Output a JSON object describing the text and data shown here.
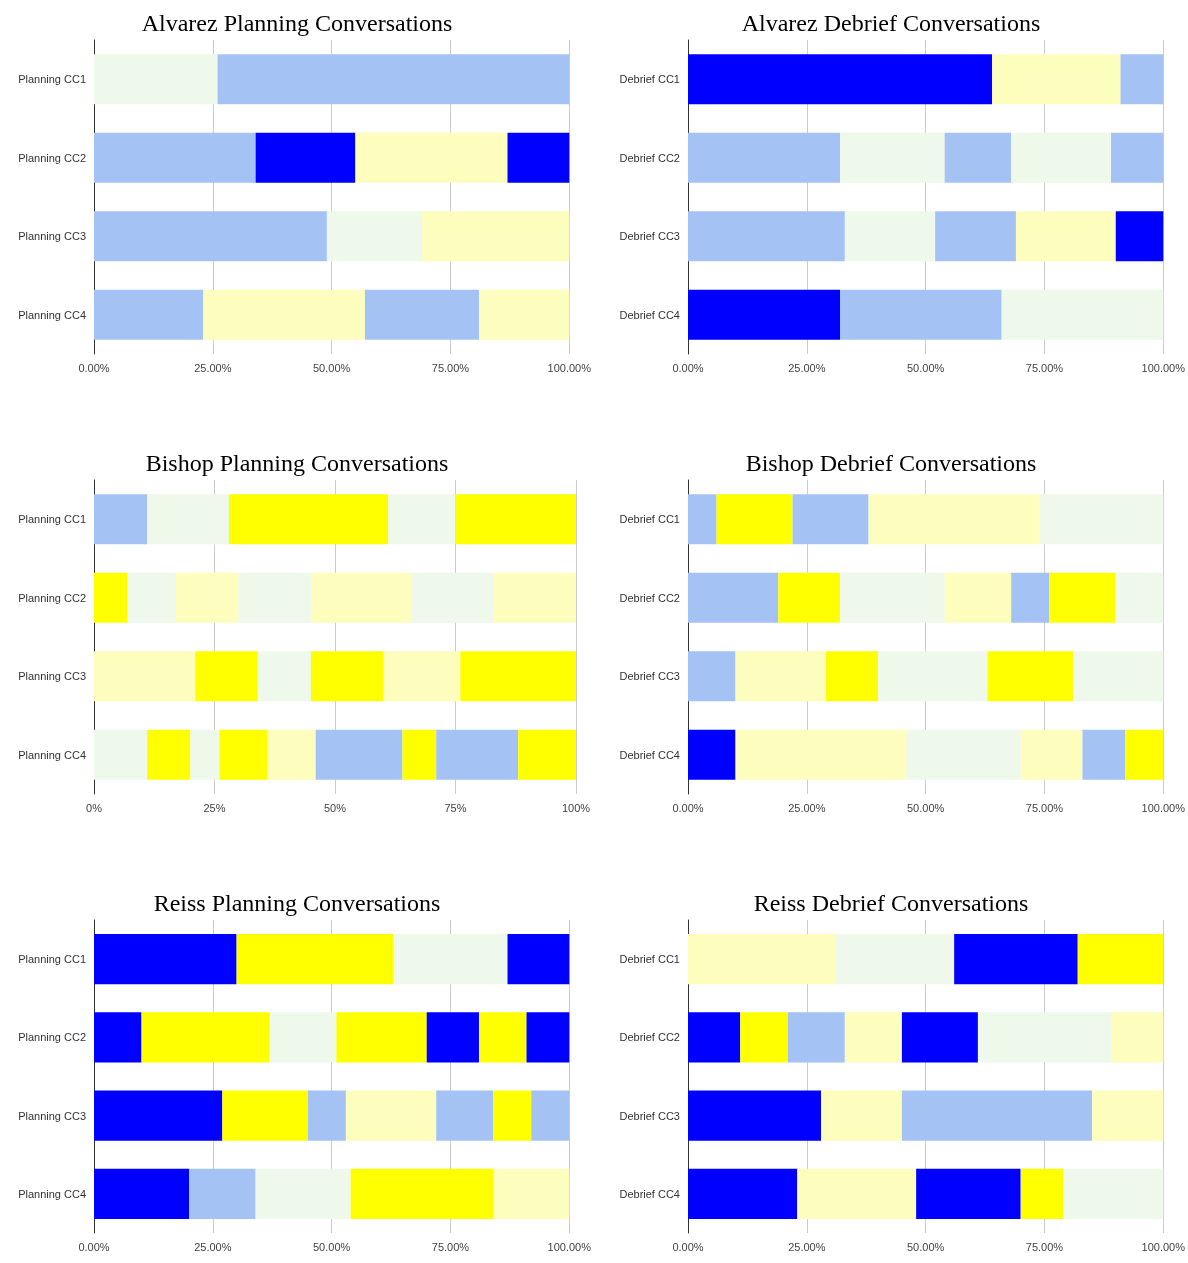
{
  "chart_data": [
    {
      "type": "bar",
      "orientation": "horizontal",
      "stacked": true,
      "grid": "x",
      "legend": false,
      "title": "Alvarez Planning Conversations",
      "categories": [
        "Planning CC1",
        "Planning CC2",
        "Planning CC3",
        "Planning CC4"
      ],
      "xlim": [
        0,
        100
      ],
      "xticks": [
        {
          "value": 0,
          "label": "0.00%"
        },
        {
          "value": 25,
          "label": "25.00%"
        },
        {
          "value": 50,
          "label": "50.00%"
        },
        {
          "value": 75,
          "label": "75.00%"
        },
        {
          "value": 100,
          "label": "100.00%"
        }
      ],
      "series": [
        {
          "values": [
            26,
            34,
            49,
            23
          ],
          "colors": [
            "#eef8eb",
            "#a4c2f4",
            "#a4c2f4",
            "#a4c2f4"
          ]
        },
        {
          "values": [
            74,
            21,
            20,
            34
          ],
          "colors": [
            "#a4c2f4",
            "#0000ff",
            "#eef8eb",
            "#fdfebe"
          ]
        },
        {
          "values": [
            null,
            32,
            31,
            24
          ],
          "colors": [
            null,
            "#fdfebe",
            "#fdfebe",
            "#a4c2f4"
          ]
        },
        {
          "values": [
            null,
            13,
            null,
            19
          ],
          "colors": [
            null,
            "#0000ff",
            null,
            "#fdfebe"
          ]
        }
      ]
    },
    {
      "type": "bar",
      "orientation": "horizontal",
      "stacked": true,
      "grid": "x",
      "legend": false,
      "title": "Alvarez Debrief Conversations",
      "categories": [
        "Debrief CC1",
        "Debrief CC2",
        "Debrief CC3",
        "Debrief CC4"
      ],
      "xlim": [
        0,
        100
      ],
      "xticks": [
        {
          "value": 0,
          "label": "0.00%"
        },
        {
          "value": 25,
          "label": "25.00%"
        },
        {
          "value": 50,
          "label": "50.00%"
        },
        {
          "value": 75,
          "label": "75.00%"
        },
        {
          "value": 100,
          "label": "100.00%"
        }
      ],
      "series": [
        {
          "values": [
            64,
            32,
            33,
            32
          ],
          "colors": [
            "#0000ff",
            "#a4c2f4",
            "#a4c2f4",
            "#0000ff"
          ]
        },
        {
          "values": [
            27,
            22,
            19,
            34
          ],
          "colors": [
            "#fdfebe",
            "#eef8eb",
            "#eef8eb",
            "#a4c2f4"
          ]
        },
        {
          "values": [
            9,
            14,
            17,
            34
          ],
          "colors": [
            "#a4c2f4",
            "#a4c2f4",
            "#a4c2f4",
            "#eef8eb"
          ]
        },
        {
          "values": [
            null,
            21,
            21,
            null
          ],
          "colors": [
            null,
            "#eef8eb",
            "#fdfebe",
            null
          ]
        },
        {
          "values": [
            null,
            11,
            10,
            null
          ],
          "colors": [
            null,
            "#a4c2f4",
            "#0000ff",
            null
          ]
        }
      ]
    },
    {
      "type": "bar",
      "orientation": "horizontal",
      "stacked": true,
      "grid": "x",
      "legend": false,
      "title": "Bishop Planning Conversations",
      "categories": [
        "Planning CC1",
        "Planning CC2",
        "Planning CC3",
        "Planning CC4"
      ],
      "xlim": [
        0,
        100
      ],
      "xticks": [
        {
          "value": 0,
          "label": "0%"
        },
        {
          "value": 25,
          "label": "25%"
        },
        {
          "value": 50,
          "label": "50%"
        },
        {
          "value": 75,
          "label": "75%"
        },
        {
          "value": 100,
          "label": "100%"
        }
      ],
      "series": [
        {
          "values": [
            11,
            7,
            21,
            11
          ],
          "colors": [
            "#a4c2f4",
            "#ffff00",
            "#fdfebe",
            "#eef8eb"
          ]
        },
        {
          "values": [
            17,
            10,
            13,
            9
          ],
          "colors": [
            "#eef8eb",
            "#eef8eb",
            "#ffff00",
            "#ffff00"
          ]
        },
        {
          "values": [
            33,
            13,
            11,
            6
          ],
          "colors": [
            "#ffff00",
            "#fdfebe",
            "#eef8eb",
            "#eef8eb"
          ]
        },
        {
          "values": [
            14,
            15,
            15,
            10
          ],
          "colors": [
            "#eef8eb",
            "#eef8eb",
            "#ffff00",
            "#ffff00"
          ]
        },
        {
          "values": [
            25,
            21,
            16,
            10
          ],
          "colors": [
            "#ffff00",
            "#fdfebe",
            "#fdfebe",
            "#fdfebe"
          ]
        },
        {
          "values": [
            null,
            17,
            24,
            18
          ],
          "colors": [
            null,
            "#eef8eb",
            "#ffff00",
            "#a4c2f4"
          ]
        },
        {
          "values": [
            null,
            17,
            null,
            7
          ],
          "colors": [
            null,
            "#fdfebe",
            null,
            "#ffff00"
          ]
        },
        {
          "values": [
            null,
            null,
            null,
            17
          ],
          "colors": [
            null,
            null,
            null,
            "#a4c2f4"
          ]
        },
        {
          "values": [
            null,
            null,
            null,
            12
          ],
          "colors": [
            null,
            null,
            null,
            "#ffff00"
          ]
        }
      ]
    },
    {
      "type": "bar",
      "orientation": "horizontal",
      "stacked": true,
      "grid": "x",
      "legend": false,
      "title": "Bishop Debrief Conversations",
      "categories": [
        "Debrief CC1",
        "Debrief CC2",
        "Debrief CC3",
        "Debrief CC4"
      ],
      "xlim": [
        0,
        100
      ],
      "xticks": [
        {
          "value": 0,
          "label": "0.00%"
        },
        {
          "value": 25,
          "label": "25.00%"
        },
        {
          "value": 50,
          "label": "50.00%"
        },
        {
          "value": 75,
          "label": "75.00%"
        },
        {
          "value": 100,
          "label": "100.00%"
        }
      ],
      "series": [
        {
          "values": [
            6,
            19,
            10,
            10
          ],
          "colors": [
            "#a4c2f4",
            "#a4c2f4",
            "#a4c2f4",
            "#0000ff"
          ]
        },
        {
          "values": [
            16,
            13,
            19,
            36
          ],
          "colors": [
            "#ffff00",
            "#ffff00",
            "#fdfebe",
            "#fdfebe"
          ]
        },
        {
          "values": [
            16,
            22,
            11,
            24
          ],
          "colors": [
            "#a4c2f4",
            "#eef8eb",
            "#ffff00",
            "#eef8eb"
          ]
        },
        {
          "values": [
            36,
            14,
            23,
            13
          ],
          "colors": [
            "#fdfebe",
            "#fdfebe",
            "#eef8eb",
            "#fdfebe"
          ]
        },
        {
          "values": [
            26,
            8,
            18,
            9
          ],
          "colors": [
            "#eef8eb",
            "#a4c2f4",
            "#ffff00",
            "#a4c2f4"
          ]
        },
        {
          "values": [
            null,
            14,
            19,
            8
          ],
          "colors": [
            null,
            "#ffff00",
            "#eef8eb",
            "#ffff00"
          ]
        },
        {
          "values": [
            null,
            10,
            null,
            null
          ],
          "colors": [
            null,
            "#eef8eb",
            null,
            null
          ]
        }
      ]
    },
    {
      "type": "bar",
      "orientation": "horizontal",
      "stacked": true,
      "grid": "x",
      "legend": false,
      "title": "Reiss Planning Conversations",
      "categories": [
        "Planning CC1",
        "Planning CC2",
        "Planning CC3",
        "Planning CC4"
      ],
      "xlim": [
        0,
        100
      ],
      "xticks": [
        {
          "value": 0,
          "label": "0.00%"
        },
        {
          "value": 25,
          "label": "25.00%"
        },
        {
          "value": 50,
          "label": "50.00%"
        },
        {
          "value": 75,
          "label": "75.00%"
        },
        {
          "value": 100,
          "label": "100.00%"
        }
      ],
      "series": [
        {
          "values": [
            30,
            10,
            27,
            20
          ],
          "colors": [
            "#0000ff",
            "#0000ff",
            "#0000ff",
            "#0000ff"
          ]
        },
        {
          "values": [
            33,
            27,
            18,
            14
          ],
          "colors": [
            "#ffff00",
            "#ffff00",
            "#ffff00",
            "#a4c2f4"
          ]
        },
        {
          "values": [
            24,
            14,
            8,
            20
          ],
          "colors": [
            "#eef8eb",
            "#eef8eb",
            "#a4c2f4",
            "#eef8eb"
          ]
        },
        {
          "values": [
            13,
            19,
            19,
            30
          ],
          "colors": [
            "#0000ff",
            "#ffff00",
            "#fdfebe",
            "#ffff00"
          ]
        },
        {
          "values": [
            null,
            11,
            12,
            16
          ],
          "colors": [
            null,
            "#0000ff",
            "#a4c2f4",
            "#fdfebe"
          ]
        },
        {
          "values": [
            null,
            10,
            8,
            null
          ],
          "colors": [
            null,
            "#ffff00",
            "#ffff00",
            null
          ]
        },
        {
          "values": [
            null,
            9,
            8,
            null
          ],
          "colors": [
            null,
            "#0000ff",
            "#a4c2f4",
            null
          ]
        }
      ]
    },
    {
      "type": "bar",
      "orientation": "horizontal",
      "stacked": true,
      "grid": "x",
      "legend": false,
      "title": "Reiss Debrief Conversations",
      "categories": [
        "Debrief CC1",
        "Debrief CC2",
        "Debrief CC3",
        "Debrief CC4"
      ],
      "xlim": [
        0,
        100
      ],
      "xticks": [
        {
          "value": 0,
          "label": "0.00%"
        },
        {
          "value": 25,
          "label": "25.00%"
        },
        {
          "value": 50,
          "label": "50.00%"
        },
        {
          "value": 75,
          "label": "75.00%"
        },
        {
          "value": 100,
          "label": "100.00%"
        }
      ],
      "series": [
        {
          "values": [
            31,
            11,
            28,
            23
          ],
          "colors": [
            "#fdfebe",
            "#0000ff",
            "#0000ff",
            "#0000ff"
          ]
        },
        {
          "values": [
            25,
            10,
            17,
            25
          ],
          "colors": [
            "#eef8eb",
            "#ffff00",
            "#fdfebe",
            "#fdfebe"
          ]
        },
        {
          "values": [
            26,
            12,
            40,
            22
          ],
          "colors": [
            "#0000ff",
            "#a4c2f4",
            "#a4c2f4",
            "#0000ff"
          ]
        },
        {
          "values": [
            18,
            12,
            15,
            9
          ],
          "colors": [
            "#ffff00",
            "#fdfebe",
            "#fdfebe",
            "#ffff00"
          ]
        },
        {
          "values": [
            null,
            16,
            null,
            21
          ],
          "colors": [
            null,
            "#0000ff",
            null,
            "#eef8eb"
          ]
        },
        {
          "values": [
            null,
            28,
            null,
            null
          ],
          "colors": [
            null,
            "#eef8eb",
            null,
            null
          ]
        },
        {
          "values": [
            null,
            11,
            null,
            null
          ],
          "colors": [
            null,
            "#fdfebe",
            null,
            null
          ]
        }
      ]
    }
  ]
}
